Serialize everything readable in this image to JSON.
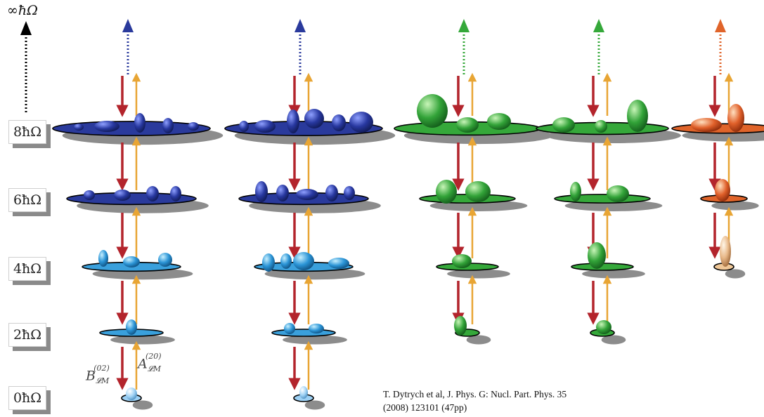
{
  "levels": [
    "0ħΩ",
    "2ħΩ",
    "4ħΩ",
    "6ħΩ",
    "8ħΩ"
  ],
  "infinity_label": "∞ħΩ",
  "operators": {
    "lowering": {
      "base": "B",
      "sub": "𝓛M",
      "sup": "(02)"
    },
    "raising": {
      "base": "A",
      "sub": "𝓛M",
      "sup": "(20)"
    }
  },
  "citation": {
    "line1": "T. Dytrych et al, J. Phys. G: Nucl. Part. Phys. 35",
    "line2": "(2008) 123101 (47pp)"
  },
  "colors": {
    "blue_dark": "#2a3a9c",
    "blue_light": "#3aa0dc",
    "green": "#35a83a",
    "orange": "#e0642a",
    "arrow_down": "#b3242c",
    "arrow_up": "#e8a534"
  }
}
